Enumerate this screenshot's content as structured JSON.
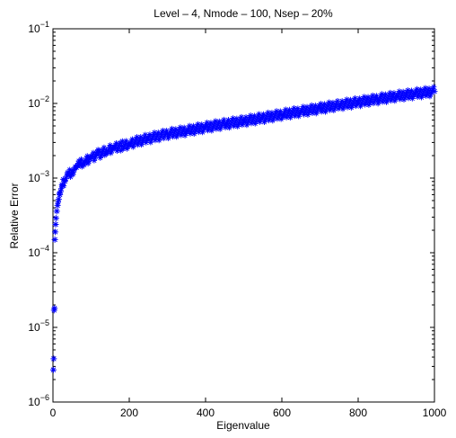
{
  "chart_data": {
    "type": "scatter",
    "title": "Level – 4, Nmode – 100, Nsep – 20%",
    "xlabel": "Eigenvalue",
    "ylabel": "Relative Error",
    "xlim": [
      0,
      1000
    ],
    "ylim": [
      1e-06,
      0.1
    ],
    "yscale": "log",
    "grid": false,
    "marker": "asterisk",
    "color": "#0000ff",
    "x_ticks": [
      {
        "value": 0,
        "label": "0"
      },
      {
        "value": 200,
        "label": "200"
      },
      {
        "value": 400,
        "label": "400"
      },
      {
        "value": 600,
        "label": "600"
      },
      {
        "value": 800,
        "label": "800"
      },
      {
        "value": 1000,
        "label": "1000"
      }
    ],
    "y_ticks": [
      {
        "value": 1e-06,
        "base": "10",
        "exp": "−6"
      },
      {
        "value": 1e-05,
        "base": "10",
        "exp": "−5"
      },
      {
        "value": 0.0001,
        "base": "10",
        "exp": "−4"
      },
      {
        "value": 0.001,
        "base": "10",
        "exp": "−3"
      },
      {
        "value": 0.01,
        "base": "10",
        "exp": "−2"
      },
      {
        "value": 0.1,
        "base": "10",
        "exp": "−1"
      }
    ],
    "series": [
      {
        "points": [
          [
            1,
            2.7e-06
          ],
          [
            2,
            3.8e-06
          ],
          [
            3,
            1.7e-05
          ],
          [
            4,
            1.8e-05
          ],
          [
            5,
            0.00015
          ],
          [
            6,
            0.00019
          ],
          [
            7,
            0.00024
          ],
          [
            8,
            0.00029
          ],
          [
            10,
            0.00036
          ],
          [
            12,
            0.00043
          ],
          [
            15,
            0.00052
          ],
          [
            18,
            0.0006
          ],
          [
            20,
            0.00066
          ],
          [
            25,
            0.0008
          ],
          [
            30,
            0.00092
          ],
          [
            40,
            0.0011
          ],
          [
            50,
            0.00125
          ],
          [
            60,
            0.0014
          ],
          [
            70,
            0.0015
          ],
          [
            80,
            0.00165
          ],
          [
            100,
            0.0019
          ],
          [
            120,
            0.0021
          ],
          [
            140,
            0.0023
          ],
          [
            160,
            0.0025
          ],
          [
            180,
            0.0027
          ],
          [
            200,
            0.0029
          ],
          [
            250,
            0.0034
          ],
          [
            300,
            0.0039
          ],
          [
            350,
            0.0043
          ],
          [
            400,
            0.0048
          ],
          [
            450,
            0.0053
          ],
          [
            500,
            0.0058
          ],
          [
            550,
            0.0064
          ],
          [
            600,
            0.0071
          ],
          [
            650,
            0.0078
          ],
          [
            700,
            0.0086
          ],
          [
            750,
            0.0095
          ],
          [
            800,
            0.0104
          ],
          [
            850,
            0.0114
          ],
          [
            900,
            0.0125
          ],
          [
            950,
            0.0135
          ],
          [
            1000,
            0.0145
          ]
        ]
      }
    ]
  }
}
